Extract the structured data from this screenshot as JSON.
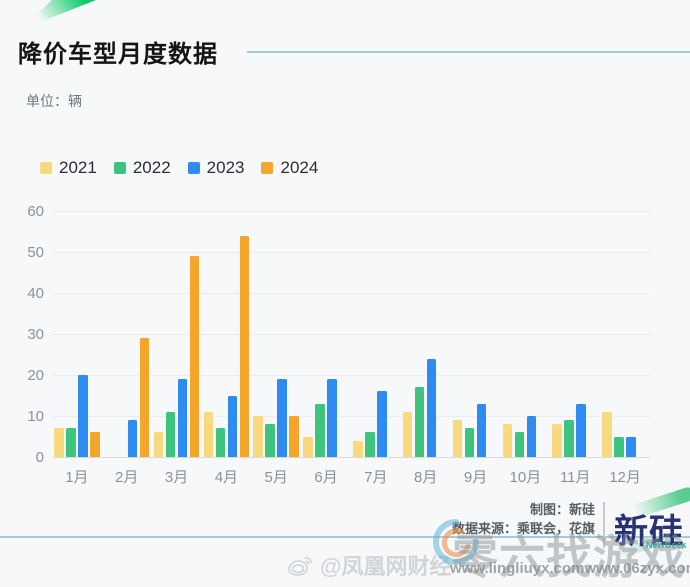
{
  "title": "降价车型月度数据",
  "unit_label": "单位：辆",
  "chart_data": {
    "type": "bar",
    "title": "降价车型月度数据",
    "ylabel": "单位：辆",
    "categories": [
      "1月",
      "2月",
      "3月",
      "4月",
      "5月",
      "6月",
      "7月",
      "8月",
      "9月",
      "10月",
      "11月",
      "12月"
    ],
    "series": [
      {
        "name": "2021",
        "color": "#f8d97d",
        "values": [
          7,
          0,
          6,
          11,
          10,
          5,
          4,
          11,
          9,
          8,
          8,
          11
        ]
      },
      {
        "name": "2022",
        "color": "#3dc57f",
        "values": [
          7,
          0,
          11,
          7,
          8,
          13,
          6,
          17,
          7,
          6,
          9,
          5
        ]
      },
      {
        "name": "2023",
        "color": "#2e8cf0",
        "values": [
          20,
          9,
          19,
          15,
          19,
          19,
          16,
          24,
          13,
          10,
          13,
          5
        ]
      },
      {
        "name": "2024",
        "color": "#f4a62a",
        "values": [
          6,
          29,
          49,
          54,
          10,
          0,
          0,
          0,
          0,
          0,
          0,
          0
        ]
      }
    ],
    "ylim": [
      0,
      60
    ],
    "yticks": [
      0,
      10,
      20,
      30,
      40,
      50,
      60
    ],
    "grid": true,
    "legend_position": "top-left"
  },
  "footer": {
    "credit_line1": "制图：新硅",
    "credit_line2": "数据来源：乘联会，花旗",
    "logo_text": "新硅",
    "logo_subtext": "NewGeek",
    "weibo_handle": "@凤凰网财经",
    "watermark_text": "零六找游戏",
    "watermark_url1": "www.lingliuyx.com",
    "watermark_url2": "www.06zyx.com"
  },
  "colors": {
    "background": "#f7f8f9",
    "accent_line_top": "#9fcdd8",
    "accent_line_bottom": "#a6c9dd",
    "wedge_green": "#0aca67",
    "logo_navy": "#253274",
    "logo_teal": "#2fb3a3"
  }
}
